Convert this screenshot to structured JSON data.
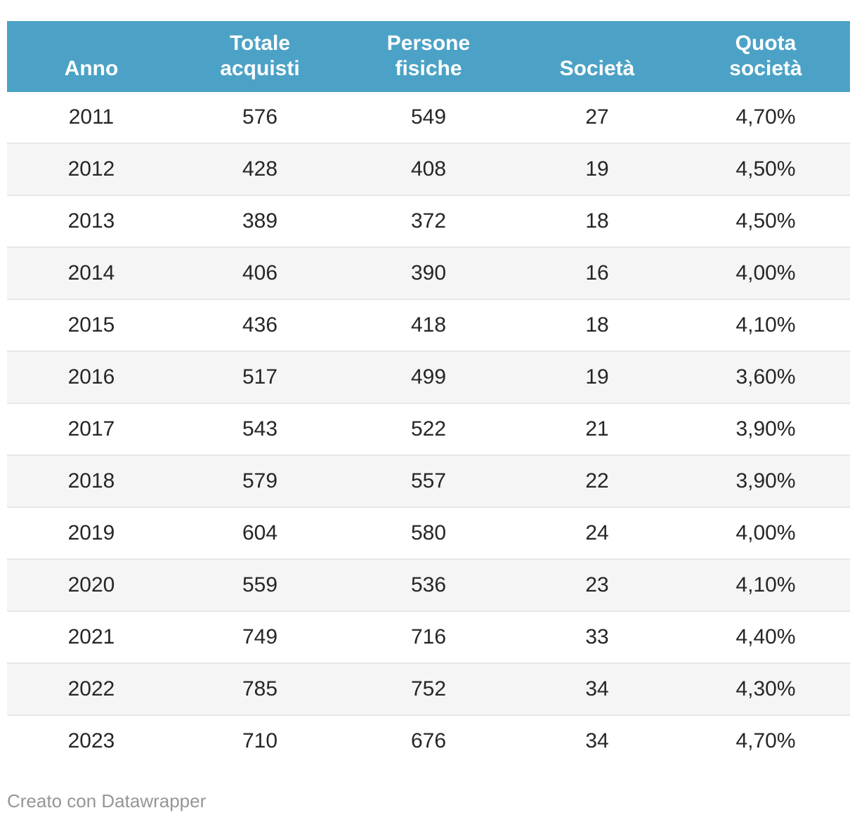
{
  "colors": {
    "header_bg": "#4CA2C6",
    "header_text": "#ffffff",
    "row_alt_bg": "#f5f5f5",
    "row_border": "#e7e7e7",
    "text": "#262626",
    "credit_text": "#969696"
  },
  "table": {
    "headers": [
      "Anno",
      "Totale\nacquisti",
      "Persone\nfisiche",
      "Società",
      "Quota\nsocietà"
    ],
    "rows": [
      [
        "2011",
        "576",
        "549",
        "27",
        "4,70%"
      ],
      [
        "2012",
        "428",
        "408",
        "19",
        "4,50%"
      ],
      [
        "2013",
        "389",
        "372",
        "18",
        "4,50%"
      ],
      [
        "2014",
        "406",
        "390",
        "16",
        "4,00%"
      ],
      [
        "2015",
        "436",
        "418",
        "18",
        "4,10%"
      ],
      [
        "2016",
        "517",
        "499",
        "19",
        "3,60%"
      ],
      [
        "2017",
        "543",
        "522",
        "21",
        "3,90%"
      ],
      [
        "2018",
        "579",
        "557",
        "22",
        "3,90%"
      ],
      [
        "2019",
        "604",
        "580",
        "24",
        "4,00%"
      ],
      [
        "2020",
        "559",
        "536",
        "23",
        "4,10%"
      ],
      [
        "2021",
        "749",
        "716",
        "33",
        "4,40%"
      ],
      [
        "2022",
        "785",
        "752",
        "34",
        "4,30%"
      ],
      [
        "2023",
        "710",
        "676",
        "34",
        "4,70%"
      ]
    ]
  },
  "footer": {
    "credit": "Creato con Datawrapper"
  },
  "chart_data": {
    "type": "table",
    "columns": [
      "Anno",
      "Totale acquisti",
      "Persone fisiche",
      "Società",
      "Quota società"
    ],
    "rows": [
      [
        2011,
        576,
        549,
        27,
        "4,70%"
      ],
      [
        2012,
        428,
        408,
        19,
        "4,50%"
      ],
      [
        2013,
        389,
        372,
        18,
        "4,50%"
      ],
      [
        2014,
        406,
        390,
        16,
        "4,00%"
      ],
      [
        2015,
        436,
        418,
        18,
        "4,10%"
      ],
      [
        2016,
        517,
        499,
        19,
        "3,60%"
      ],
      [
        2017,
        543,
        522,
        21,
        "3,90%"
      ],
      [
        2018,
        579,
        557,
        22,
        "3,90%"
      ],
      [
        2019,
        604,
        580,
        24,
        "4,00%"
      ],
      [
        2020,
        559,
        536,
        23,
        "4,10%"
      ],
      [
        2021,
        749,
        716,
        33,
        "4,40%"
      ],
      [
        2022,
        785,
        752,
        34,
        "4,30%"
      ],
      [
        2023,
        710,
        676,
        34,
        "4,70%"
      ]
    ]
  }
}
